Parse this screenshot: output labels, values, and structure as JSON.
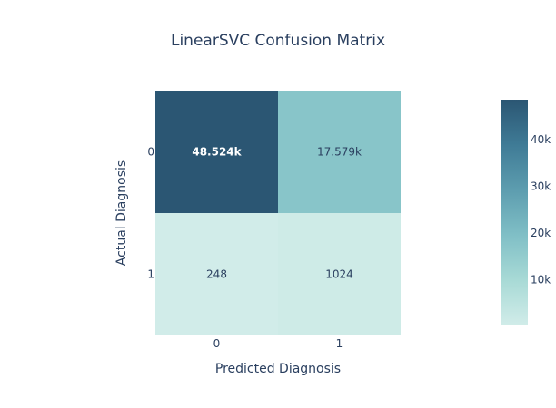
{
  "chart_data": {
    "type": "heatmap",
    "title": "LinearSVC Confusion Matrix",
    "xlabel": "Predicted Diagnosis",
    "ylabel": "Actual Diagnosis",
    "x_categories": [
      "0",
      "1"
    ],
    "y_categories": [
      "0",
      "1"
    ],
    "z": [
      [
        48524,
        17579
      ],
      [
        248,
        1024
      ]
    ],
    "cell_text": [
      [
        "48.524k",
        "17.579k"
      ],
      [
        "248",
        "1024"
      ]
    ],
    "colorscale": [
      "#d1ece9",
      "#a8dad6",
      "#80bfc6",
      "#5d9daf",
      "#3f7b96",
      "#2b5673"
    ],
    "colorbar": {
      "tick_values": [
        10000,
        20000,
        30000,
        40000
      ],
      "tick_labels": [
        "10k",
        "20k",
        "30k",
        "40k"
      ]
    },
    "grid": false,
    "legend": "right"
  }
}
